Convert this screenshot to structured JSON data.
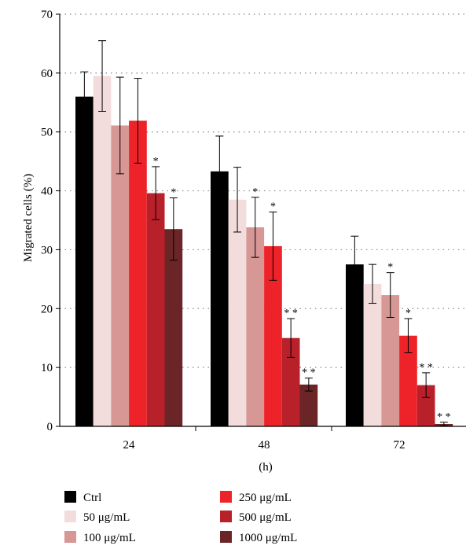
{
  "chart_data": {
    "type": "bar",
    "title": "",
    "xlabel": "(h)",
    "ylabel": "Migrated cells (%)",
    "ylim": [
      0,
      70
    ],
    "yticks": [
      0,
      10,
      20,
      30,
      40,
      50,
      60,
      70
    ],
    "grid": "horizontal dotted",
    "legend_position": "bottom",
    "categories": [
      "24",
      "48",
      "72"
    ],
    "series": [
      {
        "name": "Ctrl",
        "color": "#000000",
        "values": [
          56,
          43.3,
          27.5
        ],
        "error": [
          4.2,
          6.0,
          4.8
        ],
        "significance": [
          "",
          "",
          ""
        ]
      },
      {
        "name": "50 μg/mL",
        "color": "#f3dcdc",
        "values": [
          59.5,
          38.5,
          24.2
        ],
        "error": [
          6.0,
          5.5,
          3.3
        ],
        "significance": [
          "",
          "",
          ""
        ]
      },
      {
        "name": "100 μg/mL",
        "color": "#d69795",
        "values": [
          51.1,
          33.8,
          22.3
        ],
        "error": [
          8.2,
          5.1,
          3.8
        ],
        "significance": [
          "",
          "*",
          "*"
        ]
      },
      {
        "name": "250 μg/mL",
        "color": "#ee2329",
        "values": [
          51.9,
          30.6,
          15.4
        ],
        "error": [
          7.2,
          5.8,
          2.9
        ],
        "significance": [
          "",
          "*",
          "*"
        ]
      },
      {
        "name": "500 μg/mL",
        "color": "#b8202a",
        "values": [
          39.6,
          15.0,
          7.0
        ],
        "error": [
          4.5,
          3.3,
          2.1
        ],
        "significance": [
          "*",
          "**",
          "**"
        ]
      },
      {
        "name": "1000 μg/mL",
        "color": "#6b2527",
        "values": [
          33.5,
          7.1,
          0.4
        ],
        "error": [
          5.3,
          1.1,
          0.3
        ],
        "significance": [
          "*",
          "**",
          "**"
        ]
      }
    ]
  }
}
